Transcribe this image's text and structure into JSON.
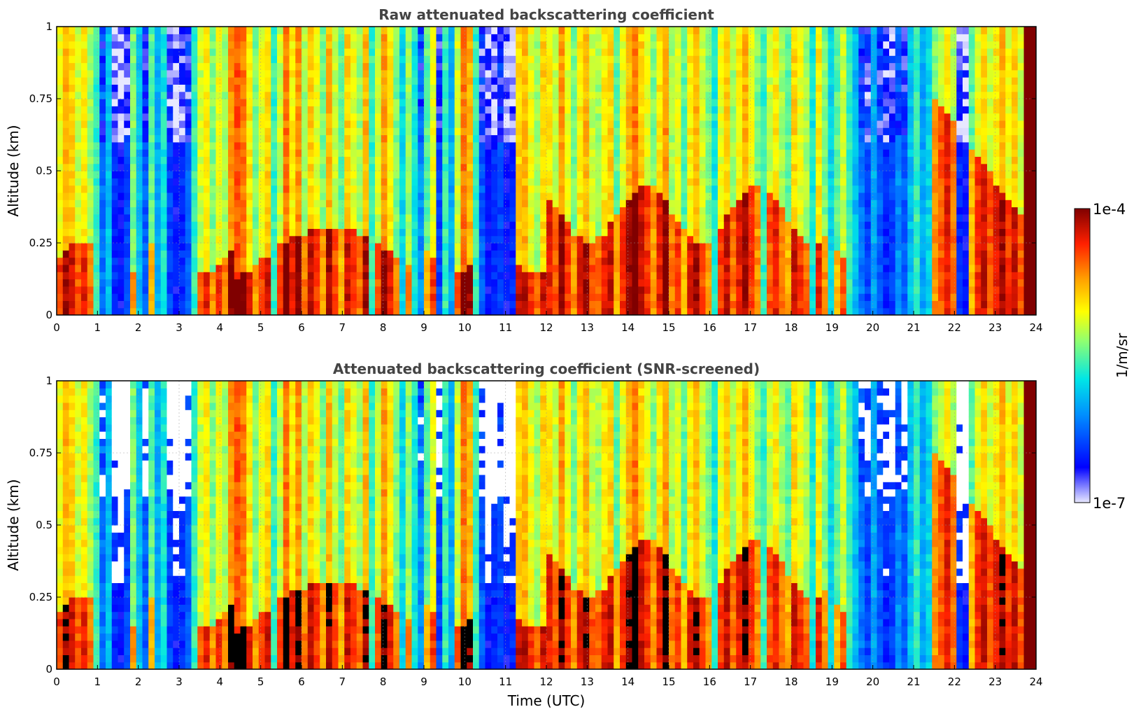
{
  "chart_data": [
    {
      "type": "heatmap",
      "title": "Raw attenuated backscattering coefficient",
      "xlabel": "",
      "ylabel": "Altitude (km)",
      "xlim": [
        0,
        24
      ],
      "ylim": [
        0,
        1
      ],
      "x_ticks": [
        "0",
        "1",
        "2",
        "3",
        "4",
        "5",
        "6",
        "7",
        "8",
        "9",
        "10",
        "11",
        "12",
        "13",
        "14",
        "15",
        "16",
        "17",
        "18",
        "19",
        "20",
        "21",
        "22",
        "23",
        "24"
      ],
      "y_ticks": [
        "0",
        "0.25",
        "0.5",
        "0.75",
        "1"
      ],
      "grid": true,
      "colormap": "jet",
      "profile_hours": [
        0.0,
        0.15,
        0.3,
        0.45,
        0.6,
        0.75,
        0.9,
        1.05,
        1.2,
        1.35,
        1.5,
        1.65,
        1.8,
        1.95,
        2.1,
        2.25,
        2.4,
        2.55,
        2.7,
        2.85,
        3.0,
        3.15,
        3.3,
        3.45,
        3.6,
        3.75,
        3.9,
        4.05,
        4.2,
        4.35,
        4.5,
        4.65,
        4.8,
        4.95,
        5.1,
        5.25,
        5.4,
        5.55,
        5.7,
        5.85,
        6.0,
        6.15,
        6.3,
        6.45,
        6.6,
        6.75,
        6.9,
        7.05,
        7.2,
        7.35,
        7.5,
        7.65,
        7.8,
        7.95,
        8.1,
        8.25,
        8.4,
        8.55,
        8.7,
        8.85,
        9.0,
        9.15,
        9.3,
        9.45,
        9.6,
        9.75,
        9.9,
        10.05,
        10.2,
        10.35,
        10.5,
        10.65,
        10.8,
        10.95,
        11.1,
        11.25,
        11.4,
        11.55,
        11.7,
        11.85,
        12.0,
        12.15,
        12.3,
        12.45,
        12.6,
        12.75,
        12.9,
        13.05,
        13.2,
        13.35,
        13.5,
        13.65,
        13.8,
        13.95,
        14.1,
        14.25,
        14.4,
        14.55,
        14.7,
        14.85,
        15.0,
        15.15,
        15.3,
        15.45,
        15.6,
        15.75,
        15.9,
        16.05,
        16.2,
        16.35,
        16.5,
        16.65,
        16.8,
        16.95,
        17.1,
        17.25,
        17.4,
        17.55,
        17.7,
        17.85,
        18.0,
        18.15,
        18.3,
        18.45,
        18.6,
        18.75,
        18.9,
        19.05,
        19.2,
        19.35,
        19.5,
        19.65,
        19.8,
        19.95,
        20.1,
        20.25,
        20.4,
        20.55,
        20.7,
        20.85,
        21.0,
        21.15,
        21.3,
        21.45,
        21.6,
        21.75,
        21.9,
        22.05,
        22.2,
        22.35,
        22.5,
        22.65,
        22.8,
        22.95,
        23.1,
        23.25,
        23.4,
        23.55,
        23.7,
        23.85
      ],
      "profile_log10_backscatter": [
        -5.1,
        -4.8,
        -4.9,
        -5.2,
        -5.0,
        -5.3,
        -5.6,
        -6.2,
        -5.9,
        -6.5,
        -6.6,
        -6.4,
        -5.4,
        -5.9,
        -6.3,
        -5.5,
        -6.0,
        -5.7,
        -6.4,
        -6.6,
        -6.5,
        -6.3,
        -5.6,
        -5.2,
        -5.0,
        -5.4,
        -5.1,
        -5.3,
        -4.7,
        -4.5,
        -4.6,
        -5.0,
        -5.4,
        -5.1,
        -4.9,
        -5.6,
        -5.2,
        -4.6,
        -5.0,
        -4.7,
        -5.3,
        -4.9,
        -5.1,
        -5.4,
        -4.8,
        -5.2,
        -5.5,
        -4.9,
        -5.1,
        -5.3,
        -4.8,
        -5.6,
        -5.2,
        -4.7,
        -5.0,
        -5.4,
        -5.8,
        -5.3,
        -5.7,
        -6.1,
        -5.5,
        -5.1,
        -6.4,
        -5.6,
        -6.0,
        -5.2,
        -4.6,
        -4.8,
        -5.6,
        -6.3,
        -6.6,
        -6.5,
        -6.4,
        -6.6,
        -6.5,
        -4.9,
        -4.8,
        -5.1,
        -5.3,
        -4.9,
        -5.0,
        -5.2,
        -4.7,
        -5.1,
        -5.4,
        -5.0,
        -4.8,
        -5.2,
        -5.3,
        -5.0,
        -4.9,
        -5.5,
        -5.1,
        -4.8,
        -4.6,
        -4.9,
        -5.1,
        -5.4,
        -5.0,
        -4.7,
        -5.3,
        -5.1,
        -5.5,
        -5.0,
        -4.8,
        -5.2,
        -5.4,
        -5.7,
        -5.1,
        -4.9,
        -5.3,
        -5.0,
        -4.8,
        -5.1,
        -5.4,
        -5.6,
        -5.2,
        -5.0,
        -5.3,
        -5.5,
        -4.9,
        -5.1,
        -5.3,
        -5.7,
        -5.0,
        -5.4,
        -5.8,
        -5.5,
        -5.2,
        -5.6,
        -5.9,
        -6.2,
        -6.4,
        -6.0,
        -6.3,
        -6.5,
        -6.4,
        -6.1,
        -6.3,
        -5.9,
        -5.6,
        -6.0,
        -5.8,
        -5.4,
        -5.2,
        -5.0,
        -5.3,
        -6.5,
        -6.6,
        -5.5,
        -5.1,
        -4.9,
        -5.2,
        -5.0,
        -4.8,
        -5.1,
        -4.9,
        -5.2
      ],
      "colorbar": {
        "min_label": "1e-7",
        "max_label": "1e-4",
        "label": "1/m/sr",
        "min_log10": -7,
        "max_log10": -4
      }
    },
    {
      "type": "heatmap",
      "title": "Attenuated backscattering coefficient (SNR-screened)",
      "xlabel": "Time (UTC)",
      "ylabel": "Altitude (km)",
      "xlim": [
        0,
        24
      ],
      "ylim": [
        0,
        1
      ],
      "x_ticks": [
        "0",
        "1",
        "2",
        "3",
        "4",
        "5",
        "6",
        "7",
        "8",
        "9",
        "10",
        "11",
        "12",
        "13",
        "14",
        "15",
        "16",
        "17",
        "18",
        "19",
        "20",
        "21",
        "22",
        "23",
        "24"
      ],
      "y_ticks": [
        "0",
        "0.25",
        "0.5",
        "0.75",
        "1"
      ],
      "grid": true,
      "colormap": "jet",
      "saturated_color": "#000000",
      "masked_color": "#ffffff"
    }
  ]
}
